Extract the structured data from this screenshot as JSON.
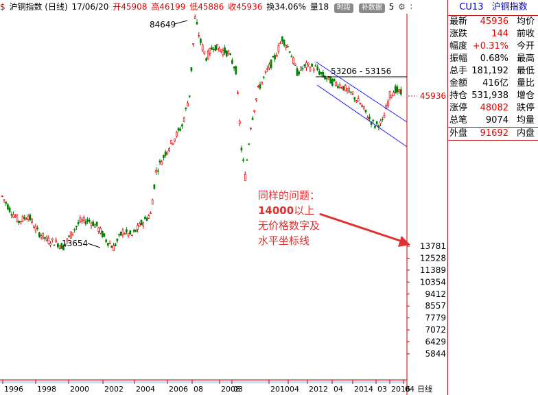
{
  "topbar": {
    "dollar": "$",
    "title": "沪铜指数 (日线)",
    "date": "17/06/20",
    "open": "开45908",
    "high": "高46199",
    "low": "低45886",
    "close": "收45936",
    "turnover": "换34.06%",
    "volume": "量18",
    "btn_time": "时段",
    "btn_fill": "补数据",
    "extra": "5"
  },
  "chart_data": {
    "type": "candlestick",
    "x_ticks": [
      "1996",
      "1998",
      "2000",
      "2002",
      "2004",
      "2006",
      "08",
      "2008",
      "03",
      "2010",
      "04",
      "2012",
      "04",
      "2014",
      "03",
      "2016",
      "04"
    ],
    "x_axis_label": "日线",
    "y_ticks": [
      13781,
      12528,
      11389,
      10354,
      9412,
      8557,
      7779,
      7072,
      6429,
      5844
    ],
    "price_series": [
      {
        "year": 1995.9,
        "v": 20500
      },
      {
        "year": 1996.3,
        "v": 18500
      },
      {
        "year": 1996.8,
        "v": 16800
      },
      {
        "year": 1997.3,
        "v": 17600
      },
      {
        "year": 1997.8,
        "v": 15500
      },
      {
        "year": 1998.3,
        "v": 14500
      },
      {
        "year": 1998.8,
        "v": 14200
      },
      {
        "year": 1999.2,
        "v": 13700
      },
      {
        "year": 1999.7,
        "v": 15500
      },
      {
        "year": 2000.1,
        "v": 16800
      },
      {
        "year": 2000.6,
        "v": 16900
      },
      {
        "year": 2001.0,
        "v": 16200
      },
      {
        "year": 2001.5,
        "v": 14500
      },
      {
        "year": 2001.9,
        "v": 13654
      },
      {
        "year": 2002.4,
        "v": 15500
      },
      {
        "year": 2002.9,
        "v": 15000
      },
      {
        "year": 2003.4,
        "v": 16500
      },
      {
        "year": 2003.9,
        "v": 17800
      },
      {
        "year": 2004.2,
        "v": 25000
      },
      {
        "year": 2004.7,
        "v": 29000
      },
      {
        "year": 2005.1,
        "v": 32000
      },
      {
        "year": 2005.6,
        "v": 36000
      },
      {
        "year": 2006.0,
        "v": 46000
      },
      {
        "year": 2006.3,
        "v": 84649
      },
      {
        "year": 2006.6,
        "v": 70000
      },
      {
        "year": 2006.9,
        "v": 62000
      },
      {
        "year": 2007.3,
        "v": 68000
      },
      {
        "year": 2007.7,
        "v": 66000
      },
      {
        "year": 2008.1,
        "v": 64000
      },
      {
        "year": 2008.5,
        "v": 56000
      },
      {
        "year": 2008.8,
        "v": 30000
      },
      {
        "year": 2009.0,
        "v": 24000
      },
      {
        "year": 2009.3,
        "v": 36000
      },
      {
        "year": 2009.7,
        "v": 48000
      },
      {
        "year": 2010.2,
        "v": 56000
      },
      {
        "year": 2010.6,
        "v": 62000
      },
      {
        "year": 2011.0,
        "v": 72000
      },
      {
        "year": 2011.4,
        "v": 66000
      },
      {
        "year": 2011.8,
        "v": 55000
      },
      {
        "year": 2012.3,
        "v": 58000
      },
      {
        "year": 2012.8,
        "v": 57000
      },
      {
        "year": 2013.2,
        "v": 53500
      },
      {
        "year": 2013.7,
        "v": 51000
      },
      {
        "year": 2014.2,
        "v": 49500
      },
      {
        "year": 2014.7,
        "v": 46500
      },
      {
        "year": 2015.2,
        "v": 43000
      },
      {
        "year": 2015.7,
        "v": 38000
      },
      {
        "year": 2016.0,
        "v": 36000
      },
      {
        "year": 2016.4,
        "v": 37000
      },
      {
        "year": 2016.8,
        "v": 46000
      },
      {
        "year": 2017.1,
        "v": 48000
      },
      {
        "year": 2017.5,
        "v": 45936
      }
    ],
    "annotations": {
      "peak_label": "84649",
      "low_label": "13654",
      "range_label": "53206 - 53156",
      "current_price_label": "45936"
    }
  },
  "annotation_text": {
    "line1": "同样的问题：",
    "line2": "14000",
    "line2b": "以上",
    "line3": "无价格数字及",
    "line4": "水平坐标线"
  },
  "panel": {
    "code": "CU13",
    "name": "沪铜指数",
    "rows1": [
      {
        "label": "最新",
        "value": "45936",
        "color": "#e60000",
        "label2": "均价"
      },
      {
        "label": "涨跌",
        "value": "144",
        "color": "#e60000",
        "label2": "前收"
      },
      {
        "label": "幅度",
        "value": "+0.31%",
        "color": "#e60000",
        "label2": "今开"
      },
      {
        "label": "振幅",
        "value": "0.68%",
        "color": "#000000",
        "label2": "最高"
      },
      {
        "label": "总手",
        "value": "181,192",
        "color": "#000000",
        "label2": "最低"
      },
      {
        "label": "金额",
        "value": "416亿",
        "color": "#000000",
        "label2": "量比"
      },
      {
        "label": "持仓",
        "value": "531,938",
        "color": "#000000",
        "label2": "增仓"
      },
      {
        "label": "涨停",
        "value": "48082",
        "color": "#e60000",
        "label2": "跌停"
      },
      {
        "label": "总笔",
        "value": "9074",
        "color": "#000000",
        "label2": "均量"
      }
    ],
    "rows2": [
      {
        "label": "外盘",
        "value": "91692",
        "color": "#e60000",
        "label2": "内盘"
      }
    ]
  },
  "colors": {
    "up": "#e60000",
    "down": "#008000",
    "channel": "#1a1aff",
    "arrow": "#e03030"
  }
}
